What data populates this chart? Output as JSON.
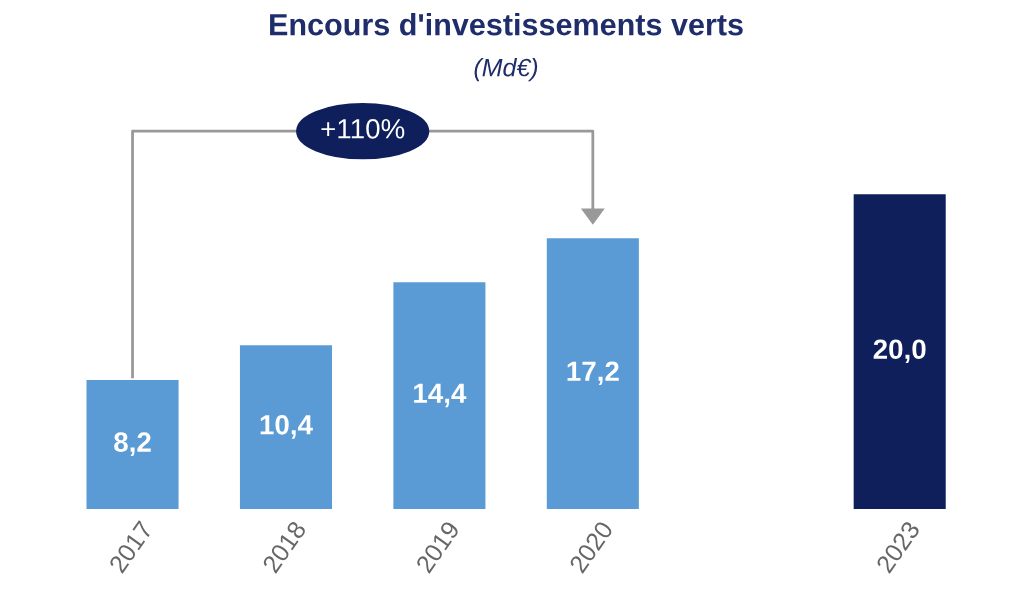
{
  "chart_data": {
    "type": "bar",
    "title": "Encours d'investissements verts",
    "subtitle": "(Md€)",
    "categories": [
      "2017",
      "2018",
      "2019",
      "2020",
      null,
      "2023"
    ],
    "values": [
      8.2,
      10.4,
      14.4,
      17.2,
      null,
      20.0
    ],
    "value_labels": [
      "8,2",
      "10,4",
      "14,4",
      "17,2",
      null,
      "20,0"
    ],
    "colors": [
      "#5b9bd5",
      "#5b9bd5",
      "#5b9bd5",
      "#5b9bd5",
      "#5b9bd5",
      "#0e1f5b"
    ],
    "annotations": [
      "+110%"
    ]
  }
}
